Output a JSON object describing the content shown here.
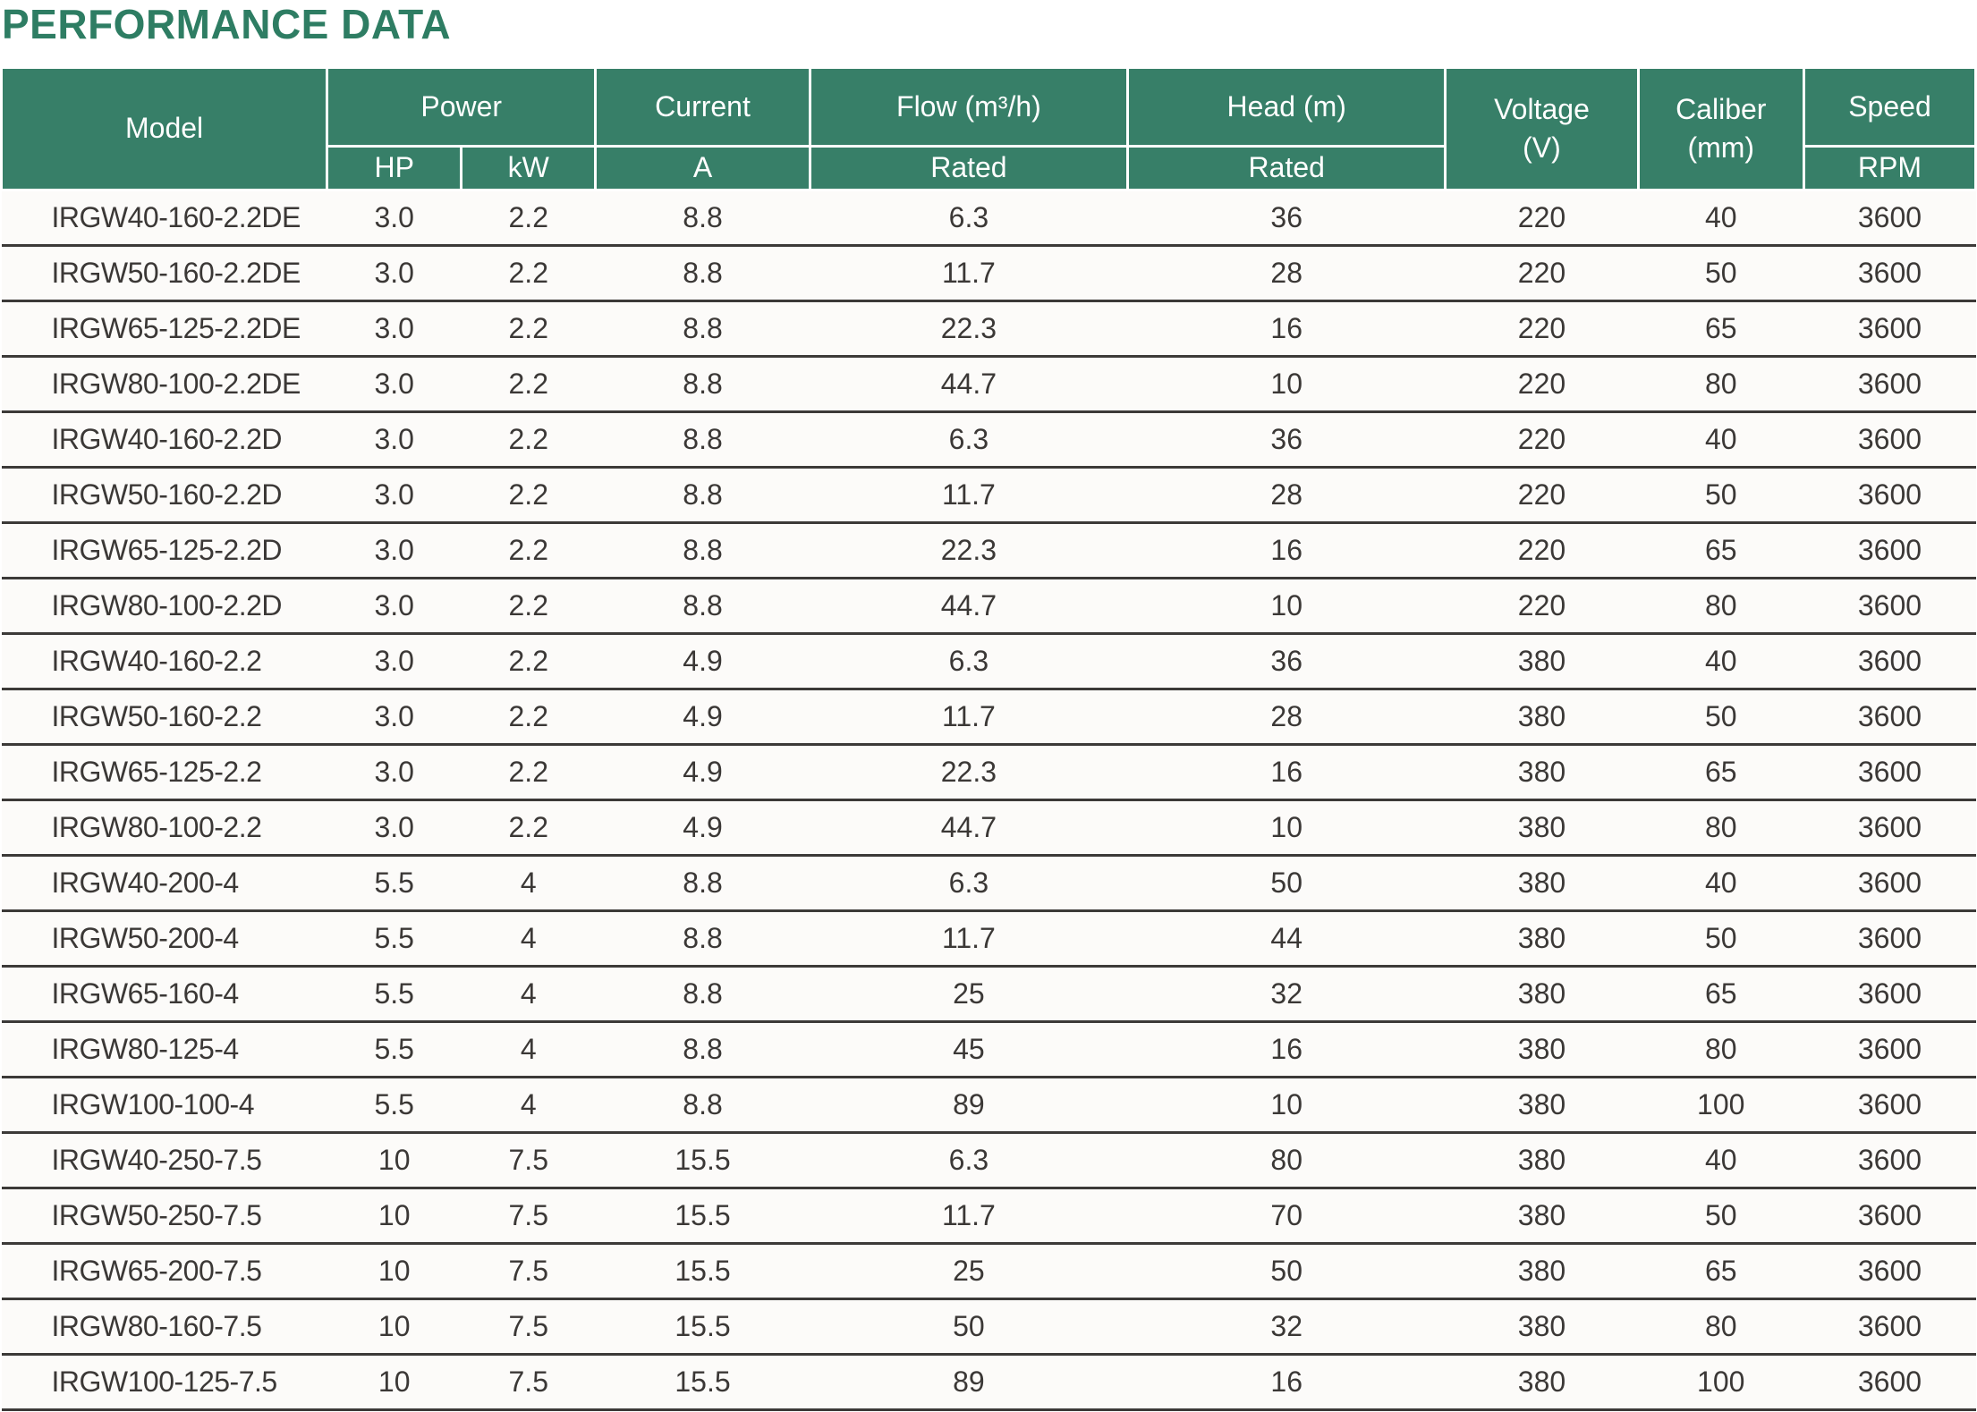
{
  "page": {
    "title": "PERFORMANCE DATA"
  },
  "colors": {
    "title_green": "#2E7D63",
    "header_green": "#377F68",
    "row_line": "#3C3A38",
    "cell_text": "#3B3836",
    "row_background": "#FCFBF9"
  },
  "table": {
    "header": {
      "model": "Model",
      "power": "Power",
      "power_hp": "HP",
      "power_kw": "kW",
      "current": "Current",
      "current_a": "A",
      "flow": "Flow (m³/h)",
      "flow_rated": "Rated",
      "head": "Head (m)",
      "head_rated": "Rated",
      "voltage_line1": "Voltage",
      "voltage_line2": "(V)",
      "caliber_line1": "Caliber",
      "caliber_line2": "(mm)",
      "speed": "Speed",
      "speed_rpm": "RPM"
    },
    "column_keys": [
      "cell-model",
      "cell-power-hp",
      "cell-power-kw",
      "cell-current-a",
      "cell-flow-rated",
      "cell-head-rated",
      "cell-voltage",
      "cell-caliber",
      "cell-speed-rpm"
    ],
    "rows": [
      [
        "IRGW40-160-2.2DE",
        "3.0",
        "2.2",
        "8.8",
        "6.3",
        "36",
        "220",
        "40",
        "3600"
      ],
      [
        "IRGW50-160-2.2DE",
        "3.0",
        "2.2",
        "8.8",
        "11.7",
        "28",
        "220",
        "50",
        "3600"
      ],
      [
        "IRGW65-125-2.2DE",
        "3.0",
        "2.2",
        "8.8",
        "22.3",
        "16",
        "220",
        "65",
        "3600"
      ],
      [
        "IRGW80-100-2.2DE",
        "3.0",
        "2.2",
        "8.8",
        "44.7",
        "10",
        "220",
        "80",
        "3600"
      ],
      [
        "IRGW40-160-2.2D",
        "3.0",
        "2.2",
        "8.8",
        "6.3",
        "36",
        "220",
        "40",
        "3600"
      ],
      [
        "IRGW50-160-2.2D",
        "3.0",
        "2.2",
        "8.8",
        "11.7",
        "28",
        "220",
        "50",
        "3600"
      ],
      [
        "IRGW65-125-2.2D",
        "3.0",
        "2.2",
        "8.8",
        "22.3",
        "16",
        "220",
        "65",
        "3600"
      ],
      [
        "IRGW80-100-2.2D",
        "3.0",
        "2.2",
        "8.8",
        "44.7",
        "10",
        "220",
        "80",
        "3600"
      ],
      [
        "IRGW40-160-2.2",
        "3.0",
        "2.2",
        "4.9",
        "6.3",
        "36",
        "380",
        "40",
        "3600"
      ],
      [
        "IRGW50-160-2.2",
        "3.0",
        "2.2",
        "4.9",
        "11.7",
        "28",
        "380",
        "50",
        "3600"
      ],
      [
        "IRGW65-125-2.2",
        "3.0",
        "2.2",
        "4.9",
        "22.3",
        "16",
        "380",
        "65",
        "3600"
      ],
      [
        "IRGW80-100-2.2",
        "3.0",
        "2.2",
        "4.9",
        "44.7",
        "10",
        "380",
        "80",
        "3600"
      ],
      [
        "IRGW40-200-4",
        "5.5",
        "4",
        "8.8",
        "6.3",
        "50",
        "380",
        "40",
        "3600"
      ],
      [
        "IRGW50-200-4",
        "5.5",
        "4",
        "8.8",
        "11.7",
        "44",
        "380",
        "50",
        "3600"
      ],
      [
        "IRGW65-160-4",
        "5.5",
        "4",
        "8.8",
        "25",
        "32",
        "380",
        "65",
        "3600"
      ],
      [
        "IRGW80-125-4",
        "5.5",
        "4",
        "8.8",
        "45",
        "16",
        "380",
        "80",
        "3600"
      ],
      [
        "IRGW100-100-4",
        "5.5",
        "4",
        "8.8",
        "89",
        "10",
        "380",
        "100",
        "3600"
      ],
      [
        "IRGW40-250-7.5",
        "10",
        "7.5",
        "15.5",
        "6.3",
        "80",
        "380",
        "40",
        "3600"
      ],
      [
        "IRGW50-250-7.5",
        "10",
        "7.5",
        "15.5",
        "11.7",
        "70",
        "380",
        "50",
        "3600"
      ],
      [
        "IRGW65-200-7.5",
        "10",
        "7.5",
        "15.5",
        "25",
        "50",
        "380",
        "65",
        "3600"
      ],
      [
        "IRGW80-160-7.5",
        "10",
        "7.5",
        "15.5",
        "50",
        "32",
        "380",
        "80",
        "3600"
      ],
      [
        "IRGW100-125-7.5",
        "10",
        "7.5",
        "15.5",
        "89",
        "16",
        "380",
        "100",
        "3600"
      ]
    ]
  }
}
